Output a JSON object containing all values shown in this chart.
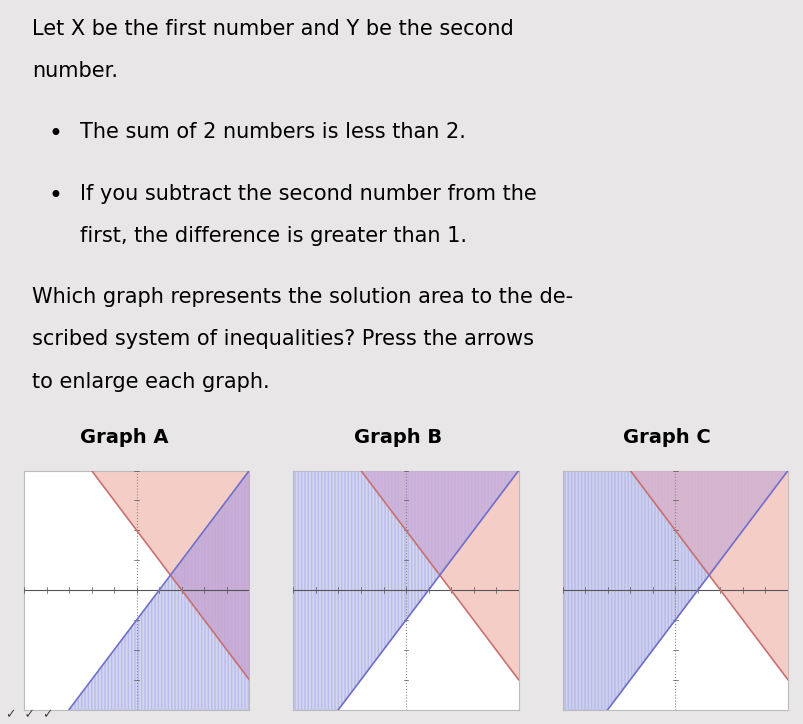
{
  "line1": "Let X be the first number and Y be the second",
  "line2": "number.",
  "bullet1": "The sum of 2 numbers is less than 2.",
  "bullet2a": "If you subtract the second number from the",
  "bullet2b": "first, the difference is greater than 1.",
  "q1": "Which graph represents the solution area to the de-",
  "q2": "scribed system of inequalities? Press the arrows",
  "q3": "to enlarge each graph.",
  "graph_labels": [
    "Graph A",
    "Graph B",
    "Graph C"
  ],
  "xlim": [
    -5,
    5
  ],
  "ylim": [
    -4,
    4
  ],
  "bg_color": "#e8e6e6",
  "pink_color": "#f2b8b0",
  "blue_color": "#b8bce8",
  "line1_color": "#c87070",
  "line2_color": "#7070c8",
  "font_size": 15,
  "graph_label_fontsize": 14
}
